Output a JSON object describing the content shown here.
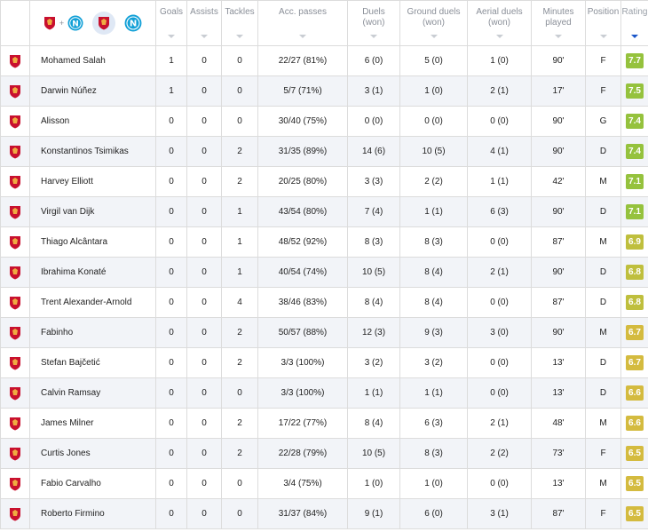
{
  "header": {
    "teams_plus": "+",
    "columns": [
      {
        "key": "goals",
        "label": "Goals"
      },
      {
        "key": "assists",
        "label": "Assists"
      },
      {
        "key": "tackles",
        "label": "Tackles"
      },
      {
        "key": "acc_passes",
        "label": "Acc. passes"
      },
      {
        "key": "duels",
        "label": "Duels (won)"
      },
      {
        "key": "ground_duels",
        "label": "Ground duels (won)"
      },
      {
        "key": "aerial_duels",
        "label": "Aerial duels (won)"
      },
      {
        "key": "minutes",
        "label": "Minutes played"
      },
      {
        "key": "position",
        "label": "Position"
      },
      {
        "key": "rating",
        "label": "Rating"
      }
    ]
  },
  "colors": {
    "rating_green": "#95c23d",
    "rating_olive": "#bfbf3d",
    "rating_amber": "#d4bb3f",
    "sort_active": "#1a56c9",
    "liverpool_red": "#c8102e",
    "napoli_blue": "#12a0d7"
  },
  "players": [
    {
      "name": "Mohamed Salah",
      "goals": "1",
      "assists": "0",
      "tackles": "0",
      "acc_passes": "22/27 (81%)",
      "duels": "6 (0)",
      "ground_duels": "5 (0)",
      "aerial_duels": "1 (0)",
      "minutes": "90'",
      "position": "F",
      "rating": "7.7",
      "tier": "green"
    },
    {
      "name": "Darwin Núñez",
      "goals": "1",
      "assists": "0",
      "tackles": "0",
      "acc_passes": "5/7 (71%)",
      "duels": "3 (1)",
      "ground_duels": "1 (0)",
      "aerial_duels": "2 (1)",
      "minutes": "17'",
      "position": "F",
      "rating": "7.5",
      "tier": "green"
    },
    {
      "name": "Alisson",
      "goals": "0",
      "assists": "0",
      "tackles": "0",
      "acc_passes": "30/40 (75%)",
      "duels": "0 (0)",
      "ground_duels": "0 (0)",
      "aerial_duels": "0 (0)",
      "minutes": "90'",
      "position": "G",
      "rating": "7.4",
      "tier": "green"
    },
    {
      "name": "Konstantinos Tsimikas",
      "goals": "0",
      "assists": "0",
      "tackles": "2",
      "acc_passes": "31/35 (89%)",
      "duels": "14 (6)",
      "ground_duels": "10 (5)",
      "aerial_duels": "4 (1)",
      "minutes": "90'",
      "position": "D",
      "rating": "7.4",
      "tier": "green"
    },
    {
      "name": "Harvey Elliott",
      "goals": "0",
      "assists": "0",
      "tackles": "2",
      "acc_passes": "20/25 (80%)",
      "duels": "3 (3)",
      "ground_duels": "2 (2)",
      "aerial_duels": "1 (1)",
      "minutes": "42'",
      "position": "M",
      "rating": "7.1",
      "tier": "green"
    },
    {
      "name": "Virgil van Dijk",
      "goals": "0",
      "assists": "0",
      "tackles": "1",
      "acc_passes": "43/54 (80%)",
      "duels": "7 (4)",
      "ground_duels": "1 (1)",
      "aerial_duels": "6 (3)",
      "minutes": "90'",
      "position": "D",
      "rating": "7.1",
      "tier": "green"
    },
    {
      "name": "Thiago Alcântara",
      "goals": "0",
      "assists": "0",
      "tackles": "1",
      "acc_passes": "48/52 (92%)",
      "duels": "8 (3)",
      "ground_duels": "8 (3)",
      "aerial_duels": "0 (0)",
      "minutes": "87'",
      "position": "M",
      "rating": "6.9",
      "tier": "olive"
    },
    {
      "name": "Ibrahima Konaté",
      "goals": "0",
      "assists": "0",
      "tackles": "1",
      "acc_passes": "40/54 (74%)",
      "duels": "10 (5)",
      "ground_duels": "8 (4)",
      "aerial_duels": "2 (1)",
      "minutes": "90'",
      "position": "D",
      "rating": "6.8",
      "tier": "olive"
    },
    {
      "name": "Trent Alexander-Arnold",
      "goals": "0",
      "assists": "0",
      "tackles": "4",
      "acc_passes": "38/46 (83%)",
      "duels": "8 (4)",
      "ground_duels": "8 (4)",
      "aerial_duels": "0 (0)",
      "minutes": "87'",
      "position": "D",
      "rating": "6.8",
      "tier": "olive"
    },
    {
      "name": "Fabinho",
      "goals": "0",
      "assists": "0",
      "tackles": "2",
      "acc_passes": "50/57 (88%)",
      "duels": "12 (3)",
      "ground_duels": "9 (3)",
      "aerial_duels": "3 (0)",
      "minutes": "90'",
      "position": "M",
      "rating": "6.7",
      "tier": "amber"
    },
    {
      "name": "Stefan Bajčetić",
      "goals": "0",
      "assists": "0",
      "tackles": "2",
      "acc_passes": "3/3 (100%)",
      "duels": "3 (2)",
      "ground_duels": "3 (2)",
      "aerial_duels": "0 (0)",
      "minutes": "13'",
      "position": "D",
      "rating": "6.7",
      "tier": "amber"
    },
    {
      "name": "Calvin Ramsay",
      "goals": "0",
      "assists": "0",
      "tackles": "0",
      "acc_passes": "3/3 (100%)",
      "duels": "1 (1)",
      "ground_duels": "1 (1)",
      "aerial_duels": "0 (0)",
      "minutes": "13'",
      "position": "D",
      "rating": "6.6",
      "tier": "amber"
    },
    {
      "name": "James Milner",
      "goals": "0",
      "assists": "0",
      "tackles": "2",
      "acc_passes": "17/22 (77%)",
      "duels": "8 (4)",
      "ground_duels": "6 (3)",
      "aerial_duels": "2 (1)",
      "minutes": "48'",
      "position": "M",
      "rating": "6.6",
      "tier": "amber"
    },
    {
      "name": "Curtis Jones",
      "goals": "0",
      "assists": "0",
      "tackles": "2",
      "acc_passes": "22/28 (79%)",
      "duels": "10 (5)",
      "ground_duels": "8 (3)",
      "aerial_duels": "2 (2)",
      "minutes": "73'",
      "position": "F",
      "rating": "6.5",
      "tier": "amber"
    },
    {
      "name": "Fabio Carvalho",
      "goals": "0",
      "assists": "0",
      "tackles": "0",
      "acc_passes": "3/4 (75%)",
      "duels": "1 (0)",
      "ground_duels": "1 (0)",
      "aerial_duels": "0 (0)",
      "minutes": "13'",
      "position": "M",
      "rating": "6.5",
      "tier": "amber"
    },
    {
      "name": "Roberto Firmino",
      "goals": "0",
      "assists": "0",
      "tackles": "0",
      "acc_passes": "31/37 (84%)",
      "duels": "9 (1)",
      "ground_duels": "6 (0)",
      "aerial_duels": "3 (1)",
      "minutes": "87'",
      "position": "F",
      "rating": "6.5",
      "tier": "amber"
    }
  ]
}
